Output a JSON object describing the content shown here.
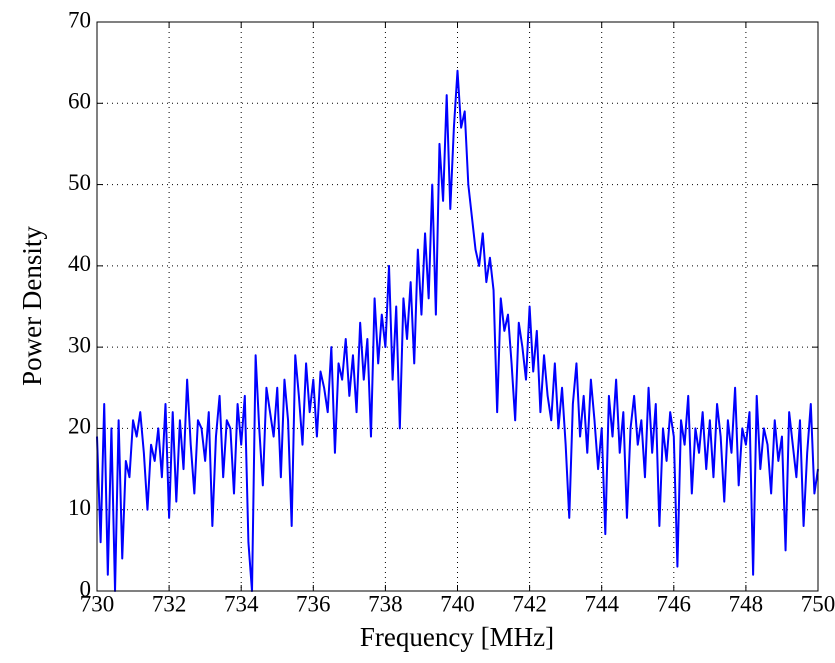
{
  "chart_data": {
    "type": "line",
    "xlabel": "Frequency [MHz]",
    "ylabel": "Power Density",
    "x": [
      730,
      730.1,
      730.2,
      730.3,
      730.4,
      730.5,
      730.6,
      730.7,
      730.8,
      730.9,
      731,
      731.1,
      731.2,
      731.3,
      731.4,
      731.5,
      731.6,
      731.7,
      731.8,
      731.9,
      732,
      732.1,
      732.2,
      732.3,
      732.4,
      732.5,
      732.6,
      732.7,
      732.8,
      732.9,
      733,
      733.1,
      733.2,
      733.3,
      733.4,
      733.5,
      733.6,
      733.7,
      733.8,
      733.9,
      734,
      734.1,
      734.2,
      734.3,
      734.4,
      734.5,
      734.6,
      734.7,
      734.8,
      734.9,
      735,
      735.1,
      735.2,
      735.3,
      735.4,
      735.5,
      735.6,
      735.7,
      735.8,
      735.9,
      736,
      736.1,
      736.2,
      736.3,
      736.4,
      736.5,
      736.6,
      736.7,
      736.8,
      736.9,
      737,
      737.1,
      737.2,
      737.3,
      737.4,
      737.5,
      737.6,
      737.7,
      737.8,
      737.9,
      738,
      738.1,
      738.2,
      738.3,
      738.4,
      738.5,
      738.6,
      738.7,
      738.8,
      738.9,
      739,
      739.1,
      739.2,
      739.3,
      739.4,
      739.5,
      739.6,
      739.7,
      739.8,
      739.9,
      740,
      740.1,
      740.2,
      740.3,
      740.4,
      740.5,
      740.6,
      740.7,
      740.8,
      740.9,
      741,
      741.1,
      741.2,
      741.3,
      741.4,
      741.5,
      741.6,
      741.7,
      741.8,
      741.9,
      742,
      742.1,
      742.2,
      742.3,
      742.4,
      742.5,
      742.6,
      742.7,
      742.8,
      742.9,
      743,
      743.1,
      743.2,
      743.3,
      743.4,
      743.5,
      743.6,
      743.7,
      743.8,
      743.9,
      744,
      744.1,
      744.2,
      744.3,
      744.4,
      744.5,
      744.6,
      744.7,
      744.8,
      744.9,
      745,
      745.1,
      745.2,
      745.3,
      745.4,
      745.5,
      745.6,
      745.7,
      745.8,
      745.9,
      746,
      746.1,
      746.2,
      746.3,
      746.4,
      746.5,
      746.6,
      746.7,
      746.8,
      746.9,
      747,
      747.1,
      747.2,
      747.3,
      747.4,
      747.5,
      747.6,
      747.7,
      747.8,
      747.9,
      748,
      748.1,
      748.2,
      748.3,
      748.4,
      748.5,
      748.6,
      748.7,
      748.8,
      748.9,
      749,
      749.1,
      749.2,
      749.3,
      749.4,
      749.5,
      749.6,
      749.7,
      749.8,
      749.9,
      750
    ],
    "series": [
      {
        "color": "#0000ff",
        "values": [
          19,
          6,
          23,
          2,
          20,
          0,
          21,
          4,
          16,
          14,
          21,
          19,
          22,
          17,
          10,
          18,
          16,
          20,
          14,
          23,
          9,
          22,
          11,
          21,
          15,
          26,
          18,
          12,
          21,
          20,
          16,
          22,
          8,
          19,
          24,
          14,
          21,
          20,
          12,
          23,
          18,
          24,
          6,
          0,
          29,
          20,
          13,
          25,
          22,
          19,
          25,
          14,
          26,
          21,
          8,
          29,
          24,
          18,
          28,
          22,
          26,
          19,
          27,
          25,
          22,
          30,
          17,
          28,
          26,
          31,
          24,
          29,
          22,
          33,
          26,
          31,
          19,
          36,
          28,
          34,
          30,
          40,
          26,
          35,
          20,
          36,
          31,
          38,
          28,
          42,
          34,
          44,
          36,
          50,
          34,
          55,
          48,
          61,
          47,
          57,
          64,
          57,
          59,
          50,
          46,
          42,
          40,
          44,
          38,
          41,
          37,
          22,
          36,
          32,
          34,
          28,
          21,
          33,
          30,
          26,
          35,
          27,
          32,
          22,
          29,
          24,
          21,
          28,
          20,
          25,
          18,
          9,
          23,
          28,
          19,
          24,
          17,
          26,
          21,
          15,
          20,
          7,
          24,
          19,
          26,
          17,
          22,
          9,
          20,
          24,
          18,
          21,
          14,
          25,
          17,
          23,
          8,
          20,
          16,
          22,
          19,
          3,
          21,
          18,
          24,
          12,
          20,
          17,
          22,
          15,
          21,
          14,
          23,
          19,
          11,
          21,
          17,
          25,
          13,
          20,
          18,
          22,
          2,
          24,
          15,
          20,
          18,
          12,
          21,
          16,
          19,
          5,
          22,
          18,
          14,
          21,
          8,
          17,
          23,
          12,
          15
        ]
      }
    ],
    "xlim": [
      730,
      750
    ],
    "xticks": [
      730,
      732,
      734,
      736,
      738,
      740,
      742,
      744,
      746,
      748,
      750
    ],
    "ylim": [
      0,
      70
    ],
    "yticks": [
      0,
      10,
      20,
      30,
      40,
      50,
      60,
      70
    ],
    "grid": true
  }
}
